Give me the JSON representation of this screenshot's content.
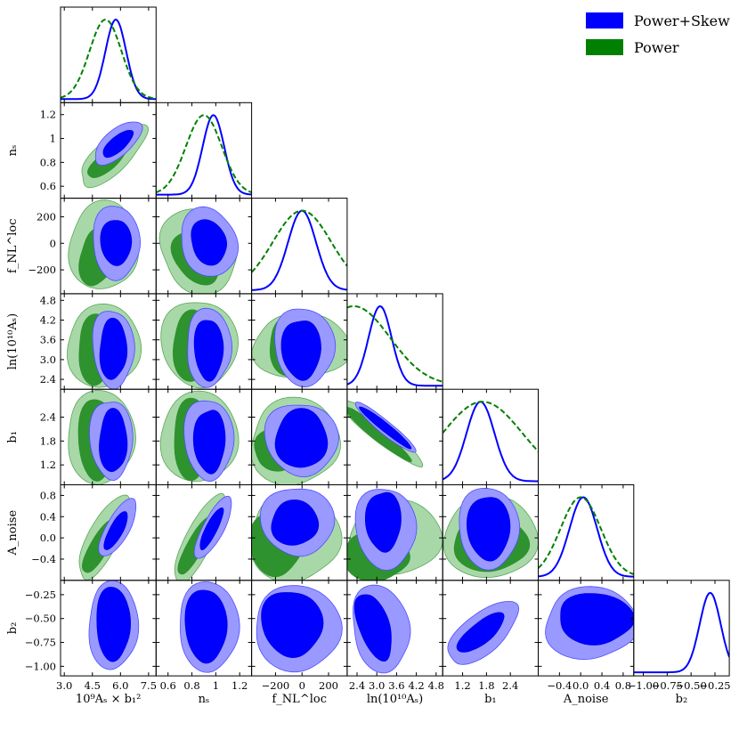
{
  "chart_data": {
    "type": "triangle-corner",
    "params": [
      {
        "key": "As",
        "label": "10⁹Aₛ × b₁²",
        "range": [
          2.8,
          7.9
        ],
        "ticks": [
          "3.0",
          "4.5",
          "6.0",
          "7.5"
        ],
        "tickvals": [
          3.0,
          4.5,
          6.0,
          7.5
        ]
      },
      {
        "key": "ns",
        "label": "nₛ",
        "range": [
          0.5,
          1.3
        ],
        "ticks": [
          "0.6",
          "0.8",
          "1",
          "1.2"
        ],
        "tickvals": [
          0.6,
          0.8,
          1.0,
          1.2
        ]
      },
      {
        "key": "fnl",
        "label": "f_NL^loc",
        "range": [
          -380,
          340
        ],
        "ticks": [
          "−200",
          "0",
          "200"
        ],
        "tickvals": [
          -200,
          0,
          200
        ]
      },
      {
        "key": "lnAs",
        "label": "ln(10¹⁰Aₛ)",
        "range": [
          2.1,
          5.0
        ],
        "ticks": [
          "2.4",
          "3.0",
          "3.6",
          "4.2",
          "4.8"
        ],
        "tickvals": [
          2.4,
          3.0,
          3.6,
          4.2,
          4.8
        ]
      },
      {
        "key": "b1",
        "label": "b₁",
        "range": [
          0.7,
          3.1
        ],
        "ticks": [
          "1.2",
          "1.8",
          "2.4"
        ],
        "tickvals": [
          1.2,
          1.8,
          2.4
        ]
      },
      {
        "key": "Anoise",
        "label": "A_noise",
        "range": [
          -0.8,
          1.0
        ],
        "ticks": [
          "−0.4",
          "0.0",
          "0.4",
          "0.8"
        ],
        "tickvals": [
          -0.4,
          0.0,
          0.4,
          0.8
        ]
      },
      {
        "key": "b2",
        "label": "b₂",
        "range": [
          -1.1,
          -0.1
        ],
        "ticks": [
          "−1.00",
          "−0.75",
          "−0.50",
          "−0.25"
        ],
        "tickvals": [
          -1.0,
          -0.75,
          -0.5,
          -0.25
        ]
      }
    ],
    "series": [
      {
        "name": "Power+Skew",
        "color": "#0000ff",
        "line": "solid",
        "marginal_peaks": [
          5.75,
          0.98,
          0,
          3.1,
          1.65,
          0.05,
          -0.3
        ],
        "marginal_widths": [
          0.55,
          0.09,
          105,
          0.35,
          0.35,
          0.26,
          0.11
        ]
      },
      {
        "name": "Power",
        "color": "#008000",
        "line": "dashed",
        "marginal_peaks": [
          5.2,
          0.9,
          0,
          2.3,
          1.7,
          0.0,
          null
        ],
        "marginal_widths": [
          0.85,
          0.15,
          220,
          1.1,
          1.0,
          0.38,
          null
        ]
      }
    ],
    "legend": [
      {
        "name": "Power+Skew",
        "color": "#0000ff"
      },
      {
        "name": "Power",
        "color": "#008000"
      }
    ],
    "legend_position": "top-right",
    "grid": false
  }
}
